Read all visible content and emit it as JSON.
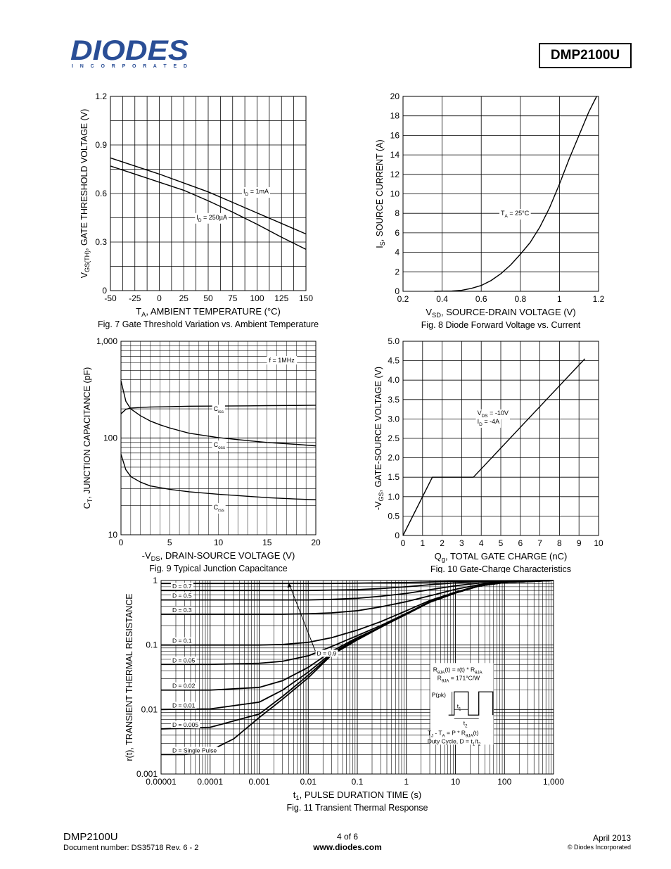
{
  "header": {
    "logo_text": "DIODES",
    "logo_sub": "I N C O R P O R A T E D",
    "part_number": "DMP2100U"
  },
  "footer": {
    "part": "DMP2100U",
    "doc": "Document number: DS35718 Rev. 6 - 2",
    "page": "4 of 6",
    "web": "www.diodes.com",
    "date": "April 2013",
    "copyright": "© Diodes Incorporated"
  },
  "chart_data": [
    {
      "id": "fig7",
      "type": "line",
      "title": "Fig. 7 Gate Threshold Variation vs. Ambient Temperature",
      "xlabel_main": "T",
      "xlabel_sub": "A",
      "xlabel_rest": ", AMBIENT TEMPERATURE (°C)",
      "ylabel_main": "V",
      "ylabel_sub": "GS(TH)",
      "ylabel_rest": ", GATE THRESHOLD VOLTAGE (V)",
      "xlim": [
        -50,
        150
      ],
      "ylim": [
        0,
        1.2
      ],
      "xticks": [
        -50,
        -25,
        0,
        25,
        50,
        75,
        100,
        125,
        150
      ],
      "xtick_labels": [
        "-50",
        "-25",
        "0",
        "25",
        "50",
        "75",
        "100",
        "125",
        "150"
      ],
      "yticks": [
        0,
        0.3,
        0.6,
        0.9,
        1.2
      ],
      "ytick_labels": [
        "0",
        "0.3",
        "0.6",
        "0.9",
        "1.2"
      ],
      "grid": true,
      "series": [
        {
          "name": "ID = 1mA",
          "label_main": "I",
          "label_sub": "D",
          "label_rest": " = 1mA",
          "label_at": [
            86,
            0.6
          ],
          "x": [
            -50,
            -25,
            0,
            25,
            50,
            75,
            100,
            125,
            150
          ],
          "y": [
            0.82,
            0.77,
            0.72,
            0.665,
            0.61,
            0.545,
            0.48,
            0.415,
            0.35
          ]
        },
        {
          "name": "ID = 250µA",
          "label_main": "I",
          "label_sub": "D",
          "label_rest": " = 250µA",
          "label_at": [
            38,
            0.44
          ],
          "x": [
            -50,
            -25,
            0,
            25,
            50,
            75,
            100,
            125,
            150
          ],
          "y": [
            0.77,
            0.72,
            0.67,
            0.62,
            0.555,
            0.485,
            0.41,
            0.33,
            0.255
          ]
        }
      ]
    },
    {
      "id": "fig8",
      "type": "line",
      "title": "Fig. 8 Diode Forward Voltage vs. Current",
      "xlabel_main": "V",
      "xlabel_sub": "SD",
      "xlabel_rest": ", SOURCE-DRAIN VOLTAGE (V)",
      "ylabel_main": "I",
      "ylabel_sub": "S",
      "ylabel_rest": ", SOURCE CURRENT (A)",
      "xlim": [
        0.2,
        1.2
      ],
      "ylim": [
        0,
        20
      ],
      "xticks": [
        0.2,
        0.4,
        0.6,
        0.8,
        1,
        1.2
      ],
      "xtick_labels": [
        "0.2",
        "0.4",
        "0.6",
        "0.8",
        "1",
        "1.2"
      ],
      "yticks": [
        0,
        2,
        4,
        6,
        8,
        10,
        12,
        14,
        16,
        18,
        20
      ],
      "ytick_labels": [
        "0",
        "2",
        "4",
        "6",
        "8",
        "10",
        "12",
        "14",
        "16",
        "18",
        "20"
      ],
      "grid": true,
      "series": [
        {
          "name": "TA = 25°C",
          "label_main": "T",
          "label_sub": "A",
          "label_rest": " = 25°C",
          "label_at": [
            0.7,
            7.8
          ],
          "x": [
            0.36,
            0.45,
            0.5,
            0.55,
            0.6,
            0.65,
            0.7,
            0.75,
            0.8,
            0.85,
            0.9,
            0.95,
            1.0,
            1.05,
            1.1,
            1.15,
            1.19
          ],
          "y": [
            0,
            0.03,
            0.1,
            0.3,
            0.6,
            1.1,
            1.8,
            2.7,
            3.8,
            5.0,
            6.6,
            8.6,
            11.0,
            13.6,
            16.0,
            18.4,
            20.0
          ]
        }
      ]
    },
    {
      "id": "fig9",
      "type": "line",
      "title": "Fig. 9 Typical Junction Capacitance",
      "xlabel_main": "-V",
      "xlabel_sub": "DS",
      "xlabel_rest": ", DRAIN-SOURCE VOLTAGE (V)",
      "ylabel_main": "C",
      "ylabel_sub": "T",
      "ylabel_rest": ", JUNCTION CAPACITANCE (pF)",
      "xlim": [
        0,
        20
      ],
      "ylim": [
        10,
        1000
      ],
      "y_scale": "log",
      "xticks": [
        0,
        5,
        10,
        15,
        20
      ],
      "xtick_labels": [
        "0",
        "5",
        "10",
        "15",
        "20"
      ],
      "yticks": [
        10,
        100,
        1000
      ],
      "ytick_labels": [
        "10",
        "100",
        "1,000"
      ],
      "grid": true,
      "annotation": "f = 1MHz",
      "series": [
        {
          "name": "Ciss",
          "label_main": "C",
          "label_sub": "iss",
          "label_rest": "",
          "label_at": [
            9.5,
            190
          ],
          "x": [
            0,
            0.5,
            1,
            2,
            3,
            5,
            7,
            10,
            13,
            15,
            18,
            20
          ],
          "y": [
            178,
            198,
            204,
            207,
            209,
            211,
            213,
            214,
            215,
            216,
            217,
            218
          ]
        },
        {
          "name": "Coss",
          "label_main": "C",
          "label_sub": "oss",
          "label_rest": "",
          "label_at": [
            9.5,
            81
          ],
          "x": [
            0,
            0.5,
            1,
            2,
            3,
            4,
            5,
            7,
            10,
            13,
            15,
            18,
            20
          ],
          "y": [
            390,
            240,
            200,
            170,
            150,
            137,
            127,
            112,
            101,
            94,
            90,
            86,
            83
          ]
        },
        {
          "name": "Crss",
          "label_main": "C",
          "label_sub": "rss",
          "label_rest": "",
          "label_at": [
            9.5,
            18.3
          ],
          "x": [
            0,
            0.5,
            1,
            2,
            3,
            5,
            7,
            10,
            13,
            15,
            18,
            20
          ],
          "y": [
            68,
            47,
            40,
            35,
            32,
            29.5,
            27.8,
            26.2,
            25,
            24.2,
            23.4,
            23
          ]
        }
      ]
    },
    {
      "id": "fig10",
      "type": "line",
      "title": "Fig. 10 Gate-Charge Characteristics",
      "xlabel_main": "Q",
      "xlabel_sub": "g",
      "xlabel_rest": ", TOTAL GATE CHARGE (nC)",
      "ylabel_main": "-V",
      "ylabel_sub": "GS",
      "ylabel_rest": ", GATE-SOURCE VOLTAGE (V)",
      "xlim": [
        0,
        10
      ],
      "ylim": [
        0,
        5
      ],
      "xticks": [
        0,
        1,
        2,
        3,
        4,
        5,
        6,
        7,
        8,
        9,
        10
      ],
      "xtick_labels": [
        "0",
        "1",
        "2",
        "3",
        "4",
        "5",
        "6",
        "7",
        "8",
        "9",
        "10"
      ],
      "yticks": [
        0,
        0.5,
        1,
        1.5,
        2,
        2.5,
        3,
        3.5,
        4,
        4.5,
        5
      ],
      "ytick_labels": [
        "0",
        "0.5",
        "1.0",
        "1.5",
        "2.0",
        "2.5",
        "3.0",
        "3.5",
        "4.0",
        "4.5",
        "5.0"
      ],
      "grid": true,
      "annotation_lines": [
        {
          "main": "V",
          "sub": "DS",
          "rest": " = -10V"
        },
        {
          "main": "I",
          "sub": "D",
          "rest": " = -4A"
        }
      ],
      "series": [
        {
          "name": "Gate charge",
          "x": [
            0,
            1.5,
            3.6,
            9.3
          ],
          "y": [
            0,
            1.5,
            1.5,
            4.55
          ]
        }
      ]
    },
    {
      "id": "fig11",
      "type": "line",
      "title": "Fig. 11 Transient Thermal Response",
      "xlabel_main": "t",
      "xlabel_sub": "1",
      "xlabel_rest": ", PULSE DURATION TIME (s)",
      "ylabel_main": "r(t), TRANSIENT THERMAL RESISTANCE",
      "ylabel_sub": "",
      "ylabel_rest": "",
      "xlim": [
        1e-05,
        1000
      ],
      "ylim": [
        0.001,
        1
      ],
      "x_scale": "log",
      "y_scale": "log",
      "xticks": [
        1e-05,
        0.0001,
        0.001,
        0.01,
        0.1,
        1,
        10,
        100,
        1000
      ],
      "xtick_labels": [
        "0.00001",
        "0.0001",
        "0.001",
        "0.01",
        "0.1",
        "1",
        "10",
        "100",
        "1,000"
      ],
      "yticks": [
        0.001,
        0.01,
        0.1,
        1
      ],
      "ytick_labels": [
        "0.001",
        "0.01",
        "0.1",
        "1"
      ],
      "grid": true,
      "series": [
        {
          "name": "D = 0.9",
          "x": [
            1e-05,
            0.0001,
            0.001,
            0.003,
            0.01,
            0.03,
            0.1,
            0.3,
            1,
            3,
            10,
            30,
            100,
            1000
          ],
          "y": [
            0.9,
            0.9,
            0.9,
            0.9,
            0.9,
            0.9,
            0.91,
            0.92,
            0.93,
            0.95,
            0.97,
            0.98,
            0.99,
            1.0
          ]
        },
        {
          "name": "D = 0.7",
          "x": [
            1e-05,
            0.0001,
            0.001,
            0.003,
            0.01,
            0.03,
            0.1,
            0.3,
            1,
            3,
            10,
            30,
            100,
            1000
          ],
          "y": [
            0.7,
            0.7,
            0.7,
            0.7,
            0.7,
            0.71,
            0.72,
            0.75,
            0.8,
            0.86,
            0.92,
            0.96,
            0.98,
            1.0
          ]
        },
        {
          "name": "D = 0.5",
          "x": [
            1e-05,
            0.0001,
            0.001,
            0.003,
            0.01,
            0.03,
            0.1,
            0.3,
            1,
            3,
            10,
            30,
            100,
            1000
          ],
          "y": [
            0.5,
            0.5,
            0.5,
            0.5,
            0.5,
            0.51,
            0.53,
            0.57,
            0.63,
            0.72,
            0.83,
            0.91,
            0.96,
            1.0
          ]
        },
        {
          "name": "D = 0.3",
          "x": [
            1e-05,
            0.0001,
            0.001,
            0.003,
            0.01,
            0.03,
            0.1,
            0.3,
            1,
            3,
            10,
            30,
            100,
            1000
          ],
          "y": [
            0.3,
            0.3,
            0.3,
            0.3,
            0.305,
            0.315,
            0.34,
            0.39,
            0.47,
            0.58,
            0.73,
            0.86,
            0.94,
            1.0
          ]
        },
        {
          "name": "D = 0.1",
          "x": [
            1e-05,
            0.0001,
            0.001,
            0.003,
            0.01,
            0.03,
            0.1,
            0.3,
            1,
            3,
            10,
            30,
            100,
            1000
          ],
          "y": [
            0.1,
            0.1,
            0.1,
            0.102,
            0.11,
            0.13,
            0.17,
            0.23,
            0.34,
            0.49,
            0.66,
            0.83,
            0.93,
            1.0
          ]
        },
        {
          "name": "D = 0.05",
          "x": [
            1e-05,
            0.0001,
            0.001,
            0.003,
            0.01,
            0.03,
            0.1,
            0.3,
            1,
            3,
            10,
            30,
            100,
            1000
          ],
          "y": [
            0.05,
            0.05,
            0.052,
            0.056,
            0.068,
            0.095,
            0.14,
            0.2,
            0.31,
            0.47,
            0.65,
            0.82,
            0.93,
            1.0
          ]
        },
        {
          "name": "D = 0.02",
          "x": [
            1e-05,
            0.0001,
            0.001,
            0.003,
            0.01,
            0.03,
            0.1,
            0.3,
            1,
            3,
            10,
            30,
            100,
            1000
          ],
          "y": [
            0.02,
            0.02,
            0.022,
            0.028,
            0.045,
            0.08,
            0.13,
            0.19,
            0.3,
            0.46,
            0.64,
            0.82,
            0.93,
            1.0
          ]
        },
        {
          "name": "D = 0.01",
          "x": [
            1e-05,
            0.0001,
            0.001,
            0.003,
            0.01,
            0.03,
            0.1,
            0.3,
            1,
            3,
            10,
            30,
            100,
            1000
          ],
          "y": [
            0.01,
            0.0102,
            0.013,
            0.02,
            0.038,
            0.075,
            0.125,
            0.19,
            0.3,
            0.46,
            0.64,
            0.82,
            0.93,
            1.0
          ]
        },
        {
          "name": "D = 0.005",
          "x": [
            1e-05,
            0.0001,
            0.001,
            0.003,
            0.01,
            0.03,
            0.1,
            0.3,
            1,
            3,
            10,
            30,
            100,
            1000
          ],
          "y": [
            0.005,
            0.0053,
            0.0085,
            0.016,
            0.034,
            0.072,
            0.122,
            0.19,
            0.3,
            0.46,
            0.64,
            0.82,
            0.93,
            1.0
          ]
        },
        {
          "name": "D = Single Pulse",
          "x": [
            1e-05,
            3e-05,
            0.0001,
            0.0003,
            0.001,
            0.003,
            0.01,
            0.03,
            0.1,
            0.3,
            1,
            3,
            10,
            30,
            100,
            1000
          ],
          "y": [
            0.002,
            0.002,
            0.0023,
            0.0035,
            0.0075,
            0.0145,
            0.031,
            0.07,
            0.12,
            0.188,
            0.3,
            0.46,
            0.64,
            0.82,
            0.93,
            1.0
          ]
        }
      ],
      "inset": {
        "line1_main": "R",
        "line1_sub": "θJA",
        "line1_rest": "(t) = r(t) * R",
        "line1_sub2": "θJA",
        "line2_main": "R",
        "line2_sub": "θJA",
        "line2_rest": " = 171°C/W",
        "ppk": "P(pk)",
        "t1_main": "t",
        "t1_sub": "1",
        "t2_main": "t",
        "t2_sub": "2",
        "line3": "T",
        "line3_sub": "J",
        "line3_rest": " - T",
        "line3_sub2": "A",
        "line3_rest2": " = P * R",
        "line3_sub3": "θJA",
        "line3_rest3": "(t)",
        "line4": "Duty Cycle, D = t",
        "line4_sub": "1",
        "line4_rest": "/t",
        "line4_sub2": "2"
      }
    }
  ]
}
